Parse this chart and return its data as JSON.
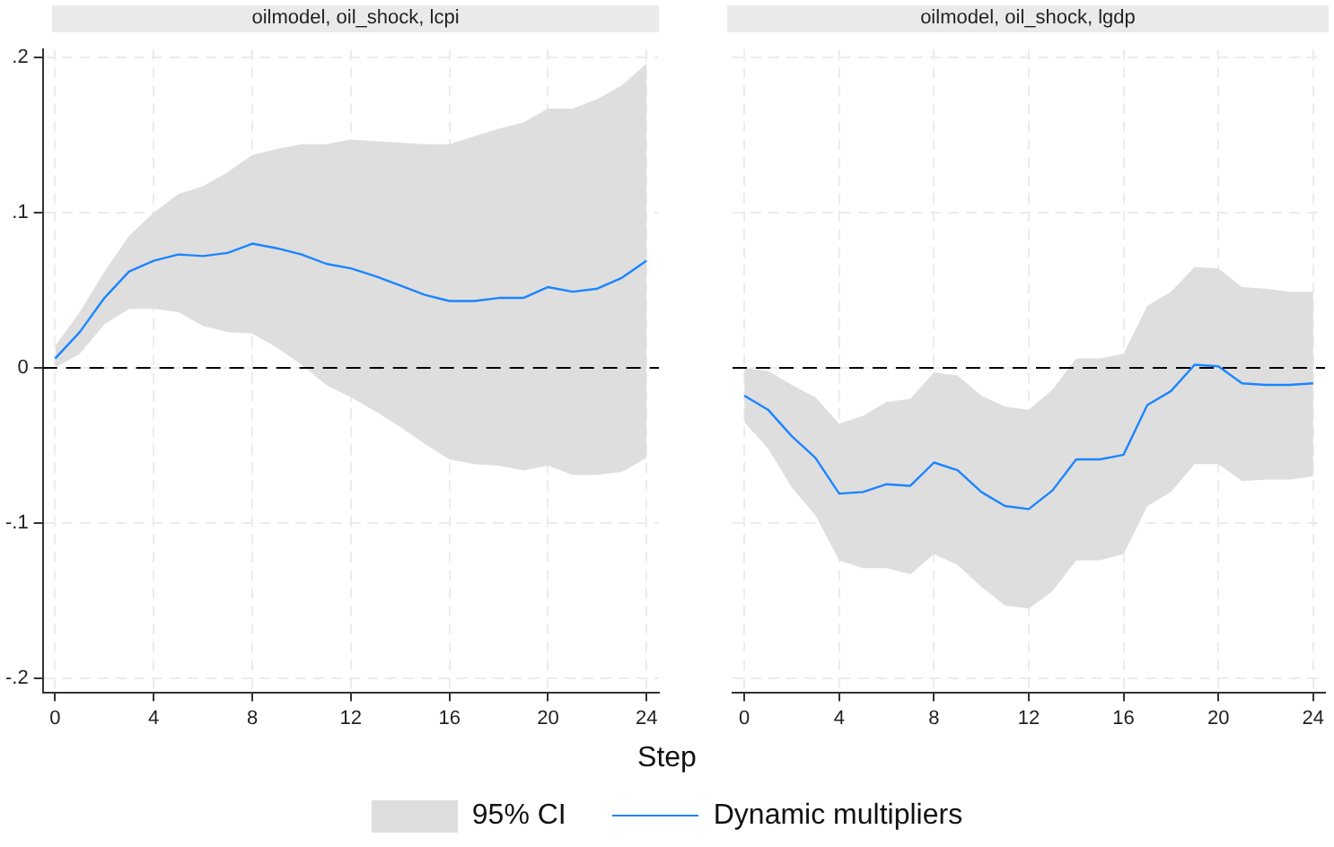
{
  "chart_data": [
    {
      "type": "line",
      "title": "oilmodel, oil_shock, lcpi",
      "xlabel": "Step",
      "legend": "bottom",
      "annotations": [
        "95% CI"
      ],
      "x": [
        0,
        1,
        2,
        3,
        4,
        5,
        6,
        7,
        8,
        9,
        10,
        11,
        12,
        13,
        14,
        15,
        16,
        17,
        18,
        19,
        20,
        21,
        22,
        23,
        24
      ],
      "series": [
        {
          "name": "Dynamic multipliers",
          "color": "#1a85ff",
          "values": [
            0.006,
            0.023,
            0.045,
            0.062,
            0.069,
            0.073,
            0.072,
            0.074,
            0.08,
            0.077,
            0.073,
            0.067,
            0.064,
            0.059,
            0.053,
            0.047,
            0.043,
            0.043,
            0.045,
            0.045,
            0.052,
            0.049,
            0.051,
            0.058,
            0.069
          ],
          "lower": [
            0.0,
            0.009,
            0.028,
            0.038,
            0.038,
            0.036,
            0.027,
            0.023,
            0.022,
            0.013,
            0.002,
            -0.011,
            -0.019,
            -0.028,
            -0.038,
            -0.049,
            -0.059,
            -0.062,
            -0.063,
            -0.066,
            -0.063,
            -0.069,
            -0.069,
            -0.067,
            -0.058
          ],
          "upper": [
            0.014,
            0.036,
            0.062,
            0.085,
            0.1,
            0.112,
            0.117,
            0.126,
            0.137,
            0.141,
            0.144,
            0.144,
            0.147,
            0.146,
            0.145,
            0.144,
            0.144,
            0.149,
            0.154,
            0.158,
            0.167,
            0.167,
            0.173,
            0.182,
            0.196
          ]
        }
      ],
      "xlim": [
        -0.5,
        24.5
      ],
      "xticks": [
        0,
        4,
        8,
        12,
        16,
        20,
        24
      ],
      "ylim": [
        -0.209,
        0.205
      ],
      "yticks": [
        {
          "value": -0.2,
          "label": "-.2"
        },
        {
          "value": -0.1,
          "label": "-.1"
        },
        0,
        {
          "value": 0.1,
          "label": ".1"
        },
        {
          "value": 0.2,
          "label": ".2"
        }
      ],
      "ref_lines": [
        {
          "axis": "y",
          "value": 0,
          "color": "#000000",
          "line_style": "dashed"
        }
      ],
      "grid": true,
      "marker": "none"
    },
    {
      "type": "line",
      "title": "oilmodel, oil_shock, lgdp",
      "x": [
        0,
        1,
        2,
        3,
        4,
        5,
        6,
        7,
        8,
        9,
        10,
        11,
        12,
        13,
        14,
        15,
        16,
        17,
        18,
        19,
        20,
        21,
        22,
        23,
        24
      ],
      "series": [
        {
          "color": "#1a85ff",
          "values": [
            -0.018,
            -0.027,
            -0.044,
            -0.058,
            -0.081,
            -0.08,
            -0.075,
            -0.076,
            -0.061,
            -0.066,
            -0.08,
            -0.089,
            -0.091,
            -0.079,
            -0.059,
            -0.059,
            -0.056,
            -0.024,
            -0.015,
            0.002,
            0.001,
            -0.01,
            -0.011,
            -0.011,
            -0.01
          ],
          "lower": [
            -0.035,
            -0.052,
            -0.077,
            -0.095,
            -0.124,
            -0.129,
            -0.129,
            -0.133,
            -0.12,
            -0.127,
            -0.141,
            -0.153,
            -0.155,
            -0.144,
            -0.124,
            -0.124,
            -0.12,
            -0.089,
            -0.08,
            -0.062,
            -0.062,
            -0.073,
            -0.072,
            -0.072,
            -0.07
          ],
          "upper": [
            0.0,
            -0.002,
            -0.011,
            -0.019,
            -0.036,
            -0.031,
            -0.022,
            -0.02,
            -0.003,
            -0.005,
            -0.018,
            -0.025,
            -0.027,
            -0.014,
            0.006,
            0.006,
            0.009,
            0.04,
            0.049,
            0.065,
            0.064,
            0.052,
            0.051,
            0.049,
            0.049
          ]
        }
      ],
      "xlim": [
        -0.5,
        24.5
      ],
      "xticks": [
        0,
        4,
        8,
        12,
        16,
        20,
        24
      ],
      "ylim": [
        -0.209,
        0.205
      ],
      "yticks": [
        {
          "value": -0.2,
          "label": null
        },
        {
          "value": -0.1,
          "label": null
        },
        {
          "value": 0,
          "label": null
        },
        {
          "value": 0.1,
          "label": null
        },
        {
          "value": 0.2,
          "label": null
        }
      ],
      "tick_labels": "x",
      "ref_lines": [
        {
          "axis": "y",
          "value": 0,
          "color": "#000000",
          "line_style": "dashed"
        }
      ],
      "grid": true,
      "marker": "none"
    }
  ]
}
